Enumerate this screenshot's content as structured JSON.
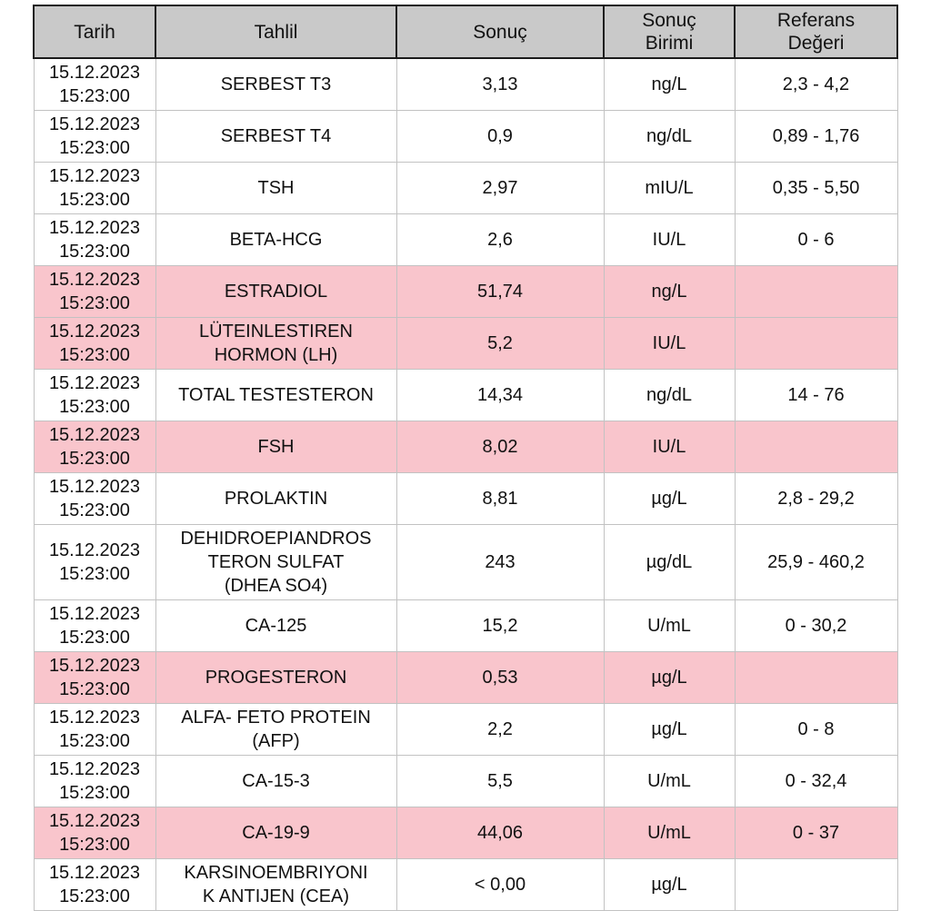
{
  "colors": {
    "header_bg": "#c9c9c9",
    "highlight_bg": "#f9c5cc",
    "text": "#111111"
  },
  "table": {
    "columns": [
      "Tarih",
      "Tahlil",
      "Sonuç",
      "Sonuç\nBirimi",
      "Referans\nDeğeri"
    ],
    "rows": [
      {
        "date": "15.12.2023",
        "time": "15:23:00",
        "test": "SERBEST T3",
        "result": "3,13",
        "unit": "ng/L",
        "reference": "2,3 - 4,2",
        "highlight": false
      },
      {
        "date": "15.12.2023",
        "time": "15:23:00",
        "test": "SERBEST T4",
        "result": "0,9",
        "unit": "ng/dL",
        "reference": "0,89 - 1,76",
        "highlight": false
      },
      {
        "date": "15.12.2023",
        "time": "15:23:00",
        "test": "TSH",
        "result": "2,97",
        "unit": "mIU/L",
        "reference": "0,35 - 5,50",
        "highlight": false
      },
      {
        "date": "15.12.2023",
        "time": "15:23:00",
        "test": "BETA-HCG",
        "result": "2,6",
        "unit": "IU/L",
        "reference": "0 - 6",
        "highlight": false
      },
      {
        "date": "15.12.2023",
        "time": "15:23:00",
        "test": "ESTRADIOL",
        "result": "51,74",
        "unit": "ng/L",
        "reference": "",
        "highlight": true
      },
      {
        "date": "15.12.2023",
        "time": "15:23:00",
        "test": "LÜTEINLESTIREN HORMON (LH)",
        "result": "5,2",
        "unit": "IU/L",
        "reference": "",
        "highlight": true
      },
      {
        "date": "15.12.2023",
        "time": "15:23:00",
        "test": "TOTAL TESTESTERON",
        "result": "14,34",
        "unit": "ng/dL",
        "reference": "14 - 76",
        "highlight": false
      },
      {
        "date": "15.12.2023",
        "time": "15:23:00",
        "test": "FSH",
        "result": "8,02",
        "unit": "IU/L",
        "reference": "",
        "highlight": true
      },
      {
        "date": "15.12.2023",
        "time": "15:23:00",
        "test": "PROLAKTIN",
        "result": "8,81",
        "unit": "µg/L",
        "reference": "2,8 - 29,2",
        "highlight": false
      },
      {
        "date": "15.12.2023",
        "time": "15:23:00",
        "test": "DEHIDROEPIANDROS\nTERON SULFAT\n(DHEA SO4)",
        "result": "243",
        "unit": "µg/dL",
        "reference": "25,9 - 460,2",
        "highlight": false
      },
      {
        "date": "15.12.2023",
        "time": "15:23:00",
        "test": "CA-125",
        "result": "15,2",
        "unit": "U/mL",
        "reference": "0 - 30,2",
        "highlight": false
      },
      {
        "date": "15.12.2023",
        "time": "15:23:00",
        "test": "PROGESTERON",
        "result": "0,53",
        "unit": "µg/L",
        "reference": "",
        "highlight": true
      },
      {
        "date": "15.12.2023",
        "time": "15:23:00",
        "test": "ALFA- FETO PROTEIN (AFP)",
        "result": "2,2",
        "unit": "µg/L",
        "reference": "0 - 8",
        "highlight": false
      },
      {
        "date": "15.12.2023",
        "time": "15:23:00",
        "test": "CA-15-3",
        "result": "5,5",
        "unit": "U/mL",
        "reference": "0 - 32,4",
        "highlight": false
      },
      {
        "date": "15.12.2023",
        "time": "15:23:00",
        "test": "CA-19-9",
        "result": "44,06",
        "unit": "U/mL",
        "reference": "0 - 37",
        "highlight": true
      },
      {
        "date": "15.12.2023",
        "time": "15:23:00",
        "test": "KARSINOEMBRIYONI\nK ANTIJEN (CEA)",
        "result": "< 0,00",
        "unit": "µg/L",
        "reference": "",
        "highlight": false
      }
    ]
  }
}
